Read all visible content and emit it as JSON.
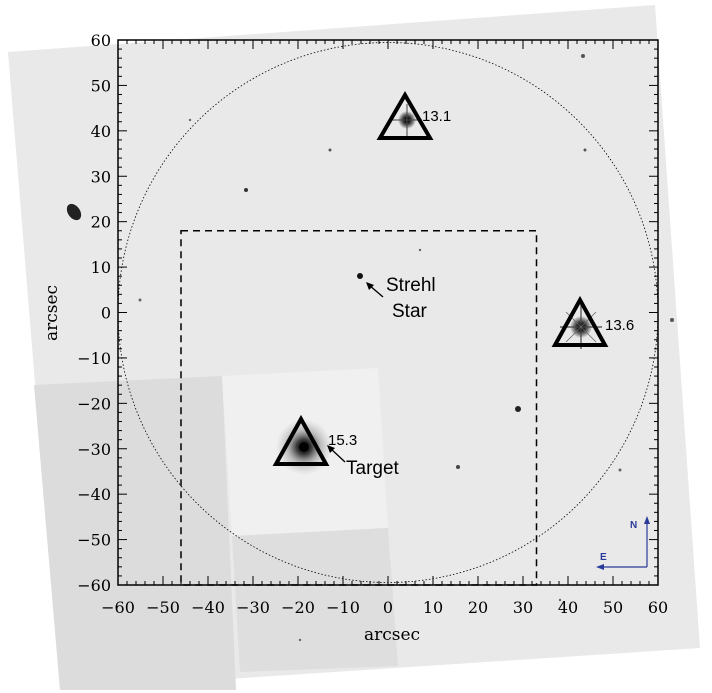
{
  "axes": {
    "xlabel": "arcsec",
    "ylabel": "arcsec",
    "range": [
      -60,
      60
    ],
    "major_ticks": [
      -60,
      -50,
      -40,
      -30,
      -20,
      -10,
      0,
      10,
      20,
      30,
      40,
      50,
      60
    ]
  },
  "field_circle": {
    "center": [
      0,
      0
    ],
    "radius": 60
  },
  "box": {
    "x_range": [
      -46,
      33
    ],
    "y_range": [
      -60,
      18
    ]
  },
  "stars": [
    {
      "name": "13.1",
      "x": 3,
      "y": 43,
      "marked": true
    },
    {
      "name": "13.6",
      "x": 42,
      "y": -3,
      "marked": true
    },
    {
      "name": "15.3",
      "x": -20,
      "y": -29.5,
      "marked": true
    },
    {
      "name": "strehl",
      "x": -8,
      "y": 7.5,
      "marked": false
    }
  ],
  "labels": {
    "star_13_1": "13.1",
    "star_13_6": "13.6",
    "star_15_3": "15.3",
    "target": "Target",
    "strehl_line1": "Strehl",
    "strehl_line2": "Star"
  },
  "compass": {
    "north": "N",
    "east": "E"
  },
  "colors": {
    "compass": "#2a3a9a",
    "sky": "#e9e9e9",
    "frame": "#000000"
  }
}
